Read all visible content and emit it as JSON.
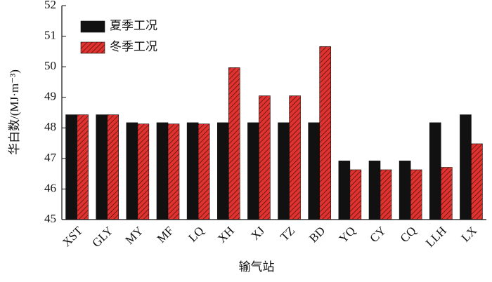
{
  "chart_data": {
    "type": "bar",
    "x_label": "输气站",
    "y_label": "华白数/(MJ·m⁻³)",
    "categories": [
      "XST",
      "GLY",
      "MY",
      "MF",
      "LQ",
      "XH",
      "XJ",
      "TZ",
      "BD",
      "YQ",
      "CY",
      "CQ",
      "LLH",
      "LX"
    ],
    "series": [
      {
        "name": "夏季工况",
        "color": "#111111",
        "values": [
          48.43,
          48.43,
          48.17,
          48.17,
          48.17,
          48.17,
          48.17,
          48.17,
          48.17,
          46.92,
          46.92,
          46.92,
          48.17,
          48.43
        ]
      },
      {
        "name": "冬季工况",
        "color": "#e0322e",
        "values": [
          48.43,
          48.43,
          48.13,
          48.13,
          48.13,
          49.97,
          49.05,
          49.05,
          50.66,
          46.63,
          46.63,
          46.63,
          46.71,
          47.48
        ]
      }
    ],
    "ylim": [
      45,
      52
    ],
    "yticks": [
      45,
      46,
      47,
      48,
      49,
      50,
      51,
      52
    ],
    "grid": false,
    "legend": "top-left"
  }
}
